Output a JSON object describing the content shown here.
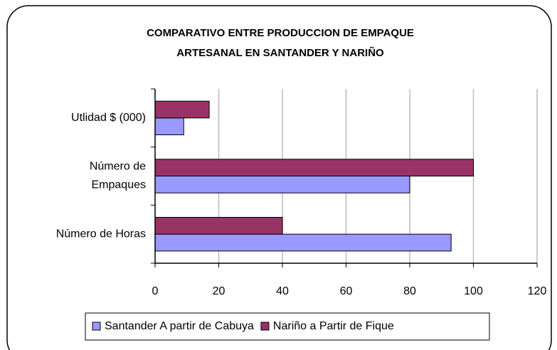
{
  "chart_data": {
    "type": "barh",
    "title": [
      "COMPARATIVO ENTRE PRODUCCION DE EMPAQUE",
      "ARTESANAL EN SANTANDER Y NARIÑO"
    ],
    "categories": [
      "Número de Horas",
      "Número de Empaques",
      "Utlidad $ (000)"
    ],
    "series": [
      {
        "name": "Santander A partir de Cabuya",
        "color": "#9999ff",
        "values": [
          93,
          80,
          9
        ]
      },
      {
        "name": "Nariño a Partir de Fique",
        "color": "#993366",
        "values": [
          40,
          100,
          17
        ]
      }
    ],
    "xlim": [
      0,
      120
    ],
    "xticks": [
      0,
      20,
      40,
      60,
      80,
      100,
      120
    ],
    "grid": true,
    "legend": "bottom"
  }
}
